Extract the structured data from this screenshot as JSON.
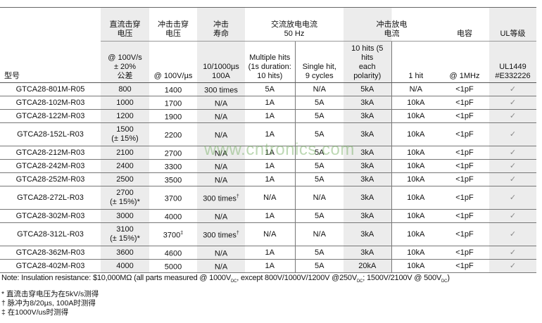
{
  "header": {
    "model": "型号",
    "dc_breakdown": {
      "title_l1": "直流击穿",
      "title_l2": "电压",
      "cond_l1": "@ 100V/s",
      "cond_l2": "± 20%",
      "cond_l3": "公差"
    },
    "impulse_breakdown": {
      "title_l1": "冲击击穿",
      "title_l2": "电压",
      "cond": "@ 100V/µs"
    },
    "impulse_life": {
      "title_l1": "冲击",
      "title_l2": "寿命",
      "cond_l1": "10/1000µs",
      "cond_l2": "100A"
    },
    "ac_discharge": {
      "title_l1": "交流放电电流",
      "title_l2": "50 Hz",
      "multi_l1": "Multiple hits",
      "multi_l2": "(1s duration:",
      "multi_l3": "10 hits)",
      "single_l1": "Single hit,",
      "single_l2": "9 cycles"
    },
    "impulse_discharge": {
      "title_l1": "冲击放电",
      "title_l2": "电流",
      "ten_l1": "10 hits (5 hits",
      "ten_l2": "each polarity)",
      "one": "1 hit"
    },
    "capacitance": {
      "title": "电容",
      "cond": "@ 1MHz"
    },
    "ul": {
      "title": "UL等级",
      "cond_l1": "UL1449",
      "cond_l2": "#E332226"
    }
  },
  "rows": [
    {
      "model": "GTCA28-801M-R05",
      "dc": "800",
      "dc2": "",
      "imp": "1400",
      "imp_mark": "",
      "life": "300 times",
      "life_mark": "",
      "multi": "5A",
      "single": "N/A",
      "ten": "5kA",
      "one": "N/A",
      "cap": "<1pF",
      "ul": "✓"
    },
    {
      "model": "GTCA28-102M-R03",
      "dc": "1000",
      "dc2": "",
      "imp": "1700",
      "imp_mark": "",
      "life": "N/A",
      "life_mark": "",
      "multi": "1A",
      "single": "5A",
      "ten": "3kA",
      "one": "10kA",
      "cap": "<1pF",
      "ul": "✓"
    },
    {
      "model": "GTCA28-122M-R03",
      "dc": "1200",
      "dc2": "",
      "imp": "1900",
      "imp_mark": "",
      "life": "N/A",
      "life_mark": "",
      "multi": "1A",
      "single": "5A",
      "ten": "3kA",
      "one": "10kA",
      "cap": "<1pF",
      "ul": "✓"
    },
    {
      "model": "GTCA28-152L-R03",
      "dc": "1500",
      "dc2": "(± 15%)",
      "imp": "2200",
      "imp_mark": "",
      "life": "N/A",
      "life_mark": "",
      "multi": "1A",
      "single": "5A",
      "ten": "3kA",
      "one": "10kA",
      "cap": "<1pF",
      "ul": "✓"
    },
    {
      "model": "GTCA28-212M-R03",
      "dc": "2100",
      "dc2": "",
      "imp": "2700",
      "imp_mark": "",
      "life": "N/A",
      "life_mark": "",
      "multi": "1A",
      "single": "5A",
      "ten": "3kA",
      "one": "10kA",
      "cap": "<1pF",
      "ul": "✓"
    },
    {
      "model": "GTCA28-242M-R03",
      "dc": "2400",
      "dc2": "",
      "imp": "3300",
      "imp_mark": "",
      "life": "N/A",
      "life_mark": "",
      "multi": "1A",
      "single": "5A",
      "ten": "3kA",
      "one": "10kA",
      "cap": "<1pF",
      "ul": "✓"
    },
    {
      "model": "GTCA28-252M-R03",
      "dc": "2500",
      "dc2": "",
      "imp": "3500",
      "imp_mark": "",
      "life": "N/A",
      "life_mark": "",
      "multi": "1A",
      "single": "5A",
      "ten": "3kA",
      "one": "10kA",
      "cap": "<1pF",
      "ul": "✓"
    },
    {
      "model": "GTCA28-272L-R03",
      "dc": "2700",
      "dc2": "(± 15%)*",
      "imp": "3700",
      "imp_mark": "",
      "life": "300 times",
      "life_mark": "†",
      "multi": "N/A",
      "single": "N/A",
      "ten": "3kA",
      "one": "10kA",
      "cap": "<1pF",
      "ul": "✓"
    },
    {
      "model": "GTCA28-302M-R03",
      "dc": "3000",
      "dc2": "",
      "imp": "4000",
      "imp_mark": "",
      "life": "N/A",
      "life_mark": "",
      "multi": "1A",
      "single": "5A",
      "ten": "3kA",
      "one": "10kA",
      "cap": "<1pF",
      "ul": "✓"
    },
    {
      "model": "GTCA28-312L-R03",
      "dc": "3100",
      "dc2": "(± 15%)*",
      "imp": "3700",
      "imp_mark": "‡",
      "life": "300 times",
      "life_mark": "†",
      "multi": "N/A",
      "single": "N/A",
      "ten": "3kA",
      "one": "10kA",
      "cap": "<1pF",
      "ul": "✓"
    },
    {
      "model": "GTCA28-362M-R03",
      "dc": "3600",
      "dc2": "",
      "imp": "4600",
      "imp_mark": "",
      "life": "N/A",
      "life_mark": "",
      "multi": "1A",
      "single": "5A",
      "ten": "3kA",
      "one": "10kA",
      "cap": "<1pF",
      "ul": "✓"
    },
    {
      "model": "GTCA28-402M-R03",
      "dc": "4000",
      "dc2": "",
      "imp": "5000",
      "imp_mark": "",
      "life": "N/A",
      "life_mark": "",
      "multi": "1A",
      "single": "5A",
      "ten": "20kA",
      "one": "10kA",
      "cap": "<1pF",
      "ul": "✓"
    }
  ],
  "note": {
    "p1": "Note: Insulation resistance: $10,000MΩ (all parts measured @ 1000V",
    "dc": "DC",
    "p2": ", except 800V/1000V/1200V @250V",
    "p3": "; 1500V/2100V @ 500V",
    "p4": ")"
  },
  "footnotes": [
    "* 直流击穿电压为在5kV/s测得",
    "† 脉冲为8/20µs, 100A时测得",
    "‡ 在1000V/us时测得"
  ],
  "watermark": "www.cntronics.com",
  "colors": {
    "shade": "#ececec",
    "rule": "#777777",
    "watermark": "#6eaa5a"
  }
}
